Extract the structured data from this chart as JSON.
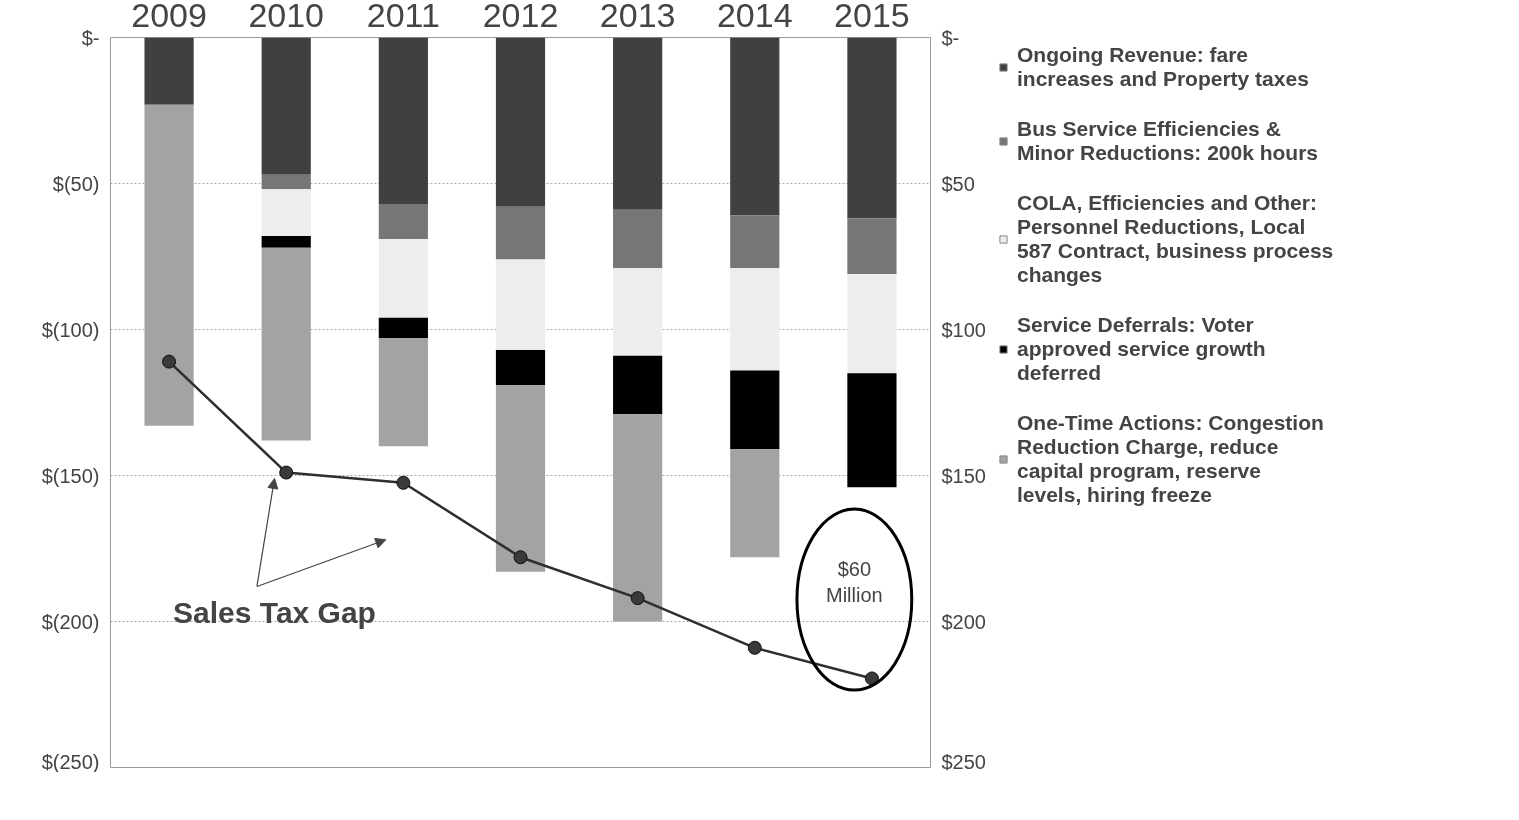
{
  "chart_data": {
    "type": "bar",
    "stacked": true,
    "categories": [
      "2009",
      "2010",
      "2011",
      "2012",
      "2013",
      "2014",
      "2015"
    ],
    "series": [
      {
        "name": "Ongoing Revenue: fare increases and Property taxes",
        "color": "#404040",
        "values": [
          -23,
          -47,
          -57,
          -58,
          -59,
          -61,
          -62
        ]
      },
      {
        "name": "Bus Service Efficiencies & Minor Reductions: 200k hours",
        "color": "#767676",
        "values": [
          null,
          -5,
          -12,
          -18,
          -20,
          -18,
          -19
        ]
      },
      {
        "name": "COLA, Efficiencies and Other: Personnel Reductions, Local 587 Contract, business process changes",
        "color": "#ededed",
        "values": [
          null,
          -16,
          -27,
          -31,
          -30,
          -35,
          -34
        ]
      },
      {
        "name": "Service Deferrals: Voter approved service growth deferred",
        "color": "#000000",
        "values": [
          null,
          -4,
          -7,
          -12,
          -20,
          -27,
          -39
        ]
      },
      {
        "name": "One-Time Actions: Congestion Reduction Charge, reduce capital program, reserve levels, hiring freeze",
        "color": "#a3a3a3",
        "values": [
          -110,
          -66,
          -37,
          -64,
          -71,
          -37,
          null
        ]
      },
      {
        "type": "line",
        "color": "#2e2e2e",
        "values": [
          -111,
          -149,
          -152.5,
          -178,
          -192,
          -209,
          -219.5
        ]
      }
    ],
    "ylim": [
      -250,
      0
    ],
    "yticks": [
      {
        "value": -250,
        "label": "$(250)"
      },
      {
        "value": -200,
        "label": "$(200)"
      },
      {
        "value": -150,
        "label": "$(150)"
      },
      {
        "value": -100,
        "label": "$(100)"
      },
      {
        "value": -50,
        "label": "$(50)"
      },
      {
        "value": 0,
        "label": "$-"
      }
    ],
    "y2lim": [
      250,
      0
    ],
    "y2ticks": [
      {
        "value": 250,
        "label": "$250"
      },
      {
        "value": 200,
        "label": "$200"
      },
      {
        "value": 150,
        "label": "$150"
      },
      {
        "value": 100,
        "label": "$100"
      },
      {
        "value": 50,
        "label": "$50"
      },
      {
        "value": 0,
        "label": "$-"
      }
    ],
    "annotations": [
      "Sales Tax Gap",
      "$60 Million"
    ],
    "marker": "circle",
    "line_style": "solid",
    "grid": "y",
    "legend": "right"
  }
}
